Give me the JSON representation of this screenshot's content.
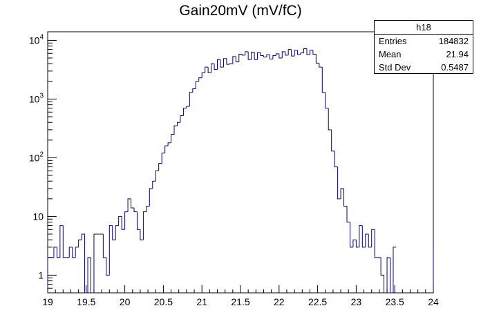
{
  "chart_data": {
    "type": "histogram",
    "title": "Gain20mV (mV/fC)",
    "xlim": [
      19,
      24
    ],
    "ylim": [
      0.5,
      14000
    ],
    "yscale": "log",
    "line_color": "#000080",
    "x_ticks": [
      "19",
      "19.5",
      "20",
      "20.5",
      "21",
      "21.5",
      "22",
      "22.5",
      "23",
      "23.5",
      "24"
    ],
    "y_ticks": [
      {
        "value": 1,
        "base": "1",
        "exp": ""
      },
      {
        "value": 10,
        "base": "10",
        "exp": ""
      },
      {
        "value": 100,
        "base": "10",
        "exp": "2"
      },
      {
        "value": 1000,
        "base": "10",
        "exp": "3"
      },
      {
        "value": 10000,
        "base": "10",
        "exp": "4"
      }
    ],
    "bin_width": 0.04,
    "bin_start": 19,
    "values": [
      2,
      2,
      3,
      2,
      7,
      2,
      2,
      3,
      2,
      3,
      4,
      5,
      0,
      2,
      0,
      5,
      5,
      5,
      2,
      1,
      7,
      4,
      7,
      10,
      6,
      12,
      20,
      14,
      12,
      6,
      4,
      12,
      15,
      30,
      40,
      60,
      80,
      120,
      160,
      180,
      250,
      350,
      400,
      520,
      700,
      750,
      1300,
      1500,
      2000,
      2300,
      2800,
      3500,
      2800,
      4000,
      3200,
      4700,
      3500,
      4900,
      3900,
      4000,
      5300,
      4300,
      5800,
      5600,
      6400,
      4700,
      6300,
      4700,
      6200,
      5500,
      5200,
      5700,
      4800,
      5500,
      5900,
      5000,
      6400,
      5600,
      7000,
      5400,
      6800,
      5700,
      6100,
      7200,
      5700,
      6800,
      5800,
      4100,
      3500,
      1300,
      700,
      300,
      130,
      70,
      20,
      30,
      15,
      8,
      3,
      4,
      3,
      7,
      3,
      5,
      3,
      6,
      2,
      2,
      1,
      0,
      2,
      0,
      3
    ],
    "stats": {
      "name": "h18",
      "entries_label": "Entries",
      "entries": "184832",
      "mean_label": "Mean",
      "mean": "21.94",
      "std_label": "Std Dev",
      "std": "0.5487"
    }
  }
}
